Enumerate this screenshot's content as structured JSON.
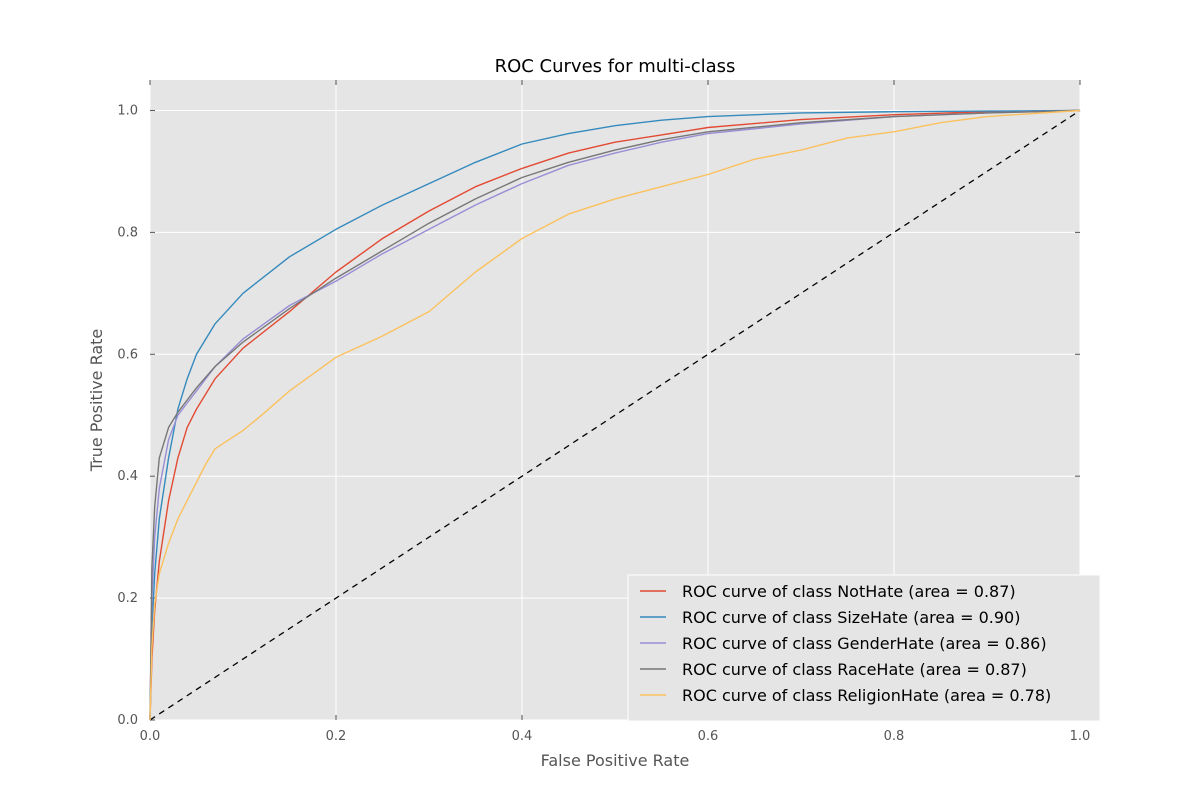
{
  "chart_data": {
    "type": "line",
    "title": "ROC Curves for multi-class",
    "xlabel": "False Positive Rate",
    "ylabel": "True Positive Rate",
    "xlim": [
      0.0,
      1.0
    ],
    "ylim": [
      0.0,
      1.05
    ],
    "x_ticks": [
      "0.0",
      "0.2",
      "0.4",
      "0.6",
      "0.8",
      "1.0"
    ],
    "y_ticks": [
      "0.0",
      "0.2",
      "0.4",
      "0.6",
      "0.8",
      "1.0"
    ],
    "grid": true,
    "background": "#e5e5e5",
    "legend_position": "lower-right",
    "series": [
      {
        "name": "ROC curve of class NotHate (area = 0.87)",
        "color": "#e24a33",
        "x": [
          0,
          0.002,
          0.005,
          0.01,
          0.02,
          0.03,
          0.04,
          0.05,
          0.07,
          0.1,
          0.15,
          0.2,
          0.25,
          0.3,
          0.35,
          0.4,
          0.45,
          0.5,
          0.55,
          0.6,
          0.7,
          0.8,
          0.9,
          1.0
        ],
        "y": [
          0,
          0.1,
          0.18,
          0.26,
          0.36,
          0.43,
          0.48,
          0.51,
          0.56,
          0.61,
          0.67,
          0.735,
          0.79,
          0.835,
          0.875,
          0.905,
          0.93,
          0.948,
          0.96,
          0.972,
          0.985,
          0.993,
          0.998,
          1.0
        ]
      },
      {
        "name": "ROC curve of class SizeHate (area = 0.90)",
        "color": "#348abd",
        "x": [
          0,
          0.002,
          0.005,
          0.01,
          0.02,
          0.03,
          0.04,
          0.05,
          0.07,
          0.1,
          0.15,
          0.2,
          0.25,
          0.3,
          0.35,
          0.4,
          0.45,
          0.5,
          0.55,
          0.6,
          0.7,
          0.8,
          0.9,
          1.0
        ],
        "y": [
          0,
          0.15,
          0.24,
          0.33,
          0.43,
          0.51,
          0.56,
          0.6,
          0.65,
          0.7,
          0.76,
          0.805,
          0.845,
          0.88,
          0.915,
          0.945,
          0.962,
          0.975,
          0.984,
          0.99,
          0.996,
          0.998,
          0.999,
          1.0
        ]
      },
      {
        "name": "ROC curve of class GenderHate (area = 0.86)",
        "color": "#988ed5",
        "x": [
          0,
          0.002,
          0.005,
          0.01,
          0.02,
          0.03,
          0.04,
          0.05,
          0.07,
          0.1,
          0.15,
          0.2,
          0.25,
          0.3,
          0.35,
          0.4,
          0.45,
          0.5,
          0.55,
          0.6,
          0.7,
          0.8,
          0.9,
          1.0
        ],
        "y": [
          0,
          0.2,
          0.3,
          0.38,
          0.46,
          0.5,
          0.52,
          0.54,
          0.58,
          0.625,
          0.68,
          0.72,
          0.765,
          0.805,
          0.845,
          0.88,
          0.91,
          0.93,
          0.948,
          0.962,
          0.978,
          0.99,
          0.996,
          1.0
        ]
      },
      {
        "name": "ROC curve of class RaceHate (area = 0.87)",
        "color": "#777777",
        "x": [
          0,
          0.002,
          0.005,
          0.01,
          0.02,
          0.03,
          0.04,
          0.05,
          0.07,
          0.1,
          0.15,
          0.2,
          0.25,
          0.3,
          0.35,
          0.4,
          0.45,
          0.5,
          0.55,
          0.6,
          0.7,
          0.8,
          0.9,
          1.0
        ],
        "y": [
          0,
          0.25,
          0.35,
          0.43,
          0.48,
          0.505,
          0.525,
          0.545,
          0.58,
          0.62,
          0.675,
          0.725,
          0.77,
          0.815,
          0.855,
          0.89,
          0.915,
          0.935,
          0.952,
          0.965,
          0.98,
          0.99,
          0.996,
          1.0
        ]
      },
      {
        "name": "ROC curve of class ReligionHate (area = 0.78)",
        "color": "#fbc15e",
        "x": [
          0,
          0.002,
          0.005,
          0.01,
          0.02,
          0.03,
          0.04,
          0.05,
          0.06,
          0.07,
          0.08,
          0.1,
          0.12,
          0.15,
          0.2,
          0.25,
          0.3,
          0.35,
          0.4,
          0.45,
          0.5,
          0.55,
          0.6,
          0.65,
          0.7,
          0.75,
          0.8,
          0.85,
          0.9,
          0.95,
          1.0
        ],
        "y": [
          0,
          0.12,
          0.19,
          0.24,
          0.29,
          0.33,
          0.36,
          0.39,
          0.42,
          0.445,
          0.455,
          0.475,
          0.5,
          0.54,
          0.595,
          0.63,
          0.67,
          0.735,
          0.79,
          0.83,
          0.855,
          0.875,
          0.895,
          0.92,
          0.935,
          0.955,
          0.965,
          0.98,
          0.99,
          0.995,
          1.0
        ]
      }
    ],
    "reference_line": {
      "style": "dashed",
      "color": "#000000",
      "x": [
        0,
        1
      ],
      "y": [
        0,
        1
      ]
    }
  }
}
